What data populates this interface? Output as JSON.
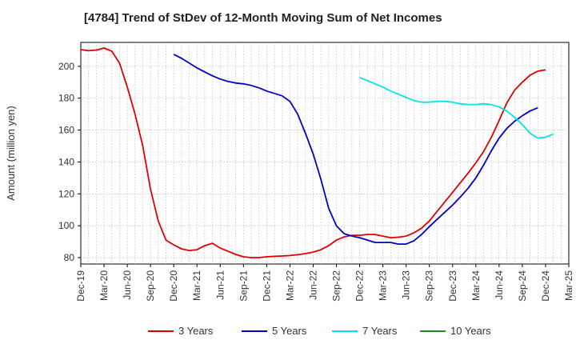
{
  "chart_data": {
    "type": "line",
    "title": "[4784]  Trend of StDev of 12-Month Moving Sum of Net Incomes",
    "ylabel": "Amount (million yen)",
    "xlabel": "",
    "ylim": [
      76,
      215
    ],
    "yticks": [
      80,
      100,
      120,
      140,
      160,
      180,
      200
    ],
    "xticks": [
      "Dec-19",
      "Mar-20",
      "Jun-20",
      "Sep-20",
      "Dec-20",
      "Mar-21",
      "Jun-21",
      "Sep-21",
      "Dec-21",
      "Mar-22",
      "Jun-22",
      "Sep-22",
      "Dec-22",
      "Mar-23",
      "Jun-23",
      "Sep-23",
      "Dec-23",
      "Mar-24",
      "Jun-24",
      "Sep-24",
      "Dec-24",
      "Mar-25"
    ],
    "grid": true,
    "legend_position": "bottom",
    "series": [
      {
        "name": "3 Years",
        "color": "#e00000",
        "start_index": 0,
        "values": [
          210.5,
          209.8,
          210.2,
          211.5,
          209.5,
          202.0,
          187.0,
          170.0,
          150.0,
          123.0,
          103.0,
          91.0,
          88.0,
          85.5,
          84.5,
          85.0,
          87.5,
          89.0,
          86.0,
          84.0,
          82.0,
          80.5,
          80.0,
          80.0,
          80.5,
          80.8,
          81.0,
          81.3,
          81.8,
          82.5,
          83.5,
          85.0,
          87.5,
          91.0,
          93.0,
          94.0,
          94.0,
          94.5,
          94.5,
          93.5,
          92.5,
          92.8,
          93.5,
          95.5,
          98.5,
          103.0,
          109.0,
          115.0,
          121.0,
          127.0,
          133.0,
          139.5,
          146.5,
          155.5,
          166.0,
          177.0,
          185.0,
          190.0,
          194.5,
          197.0,
          197.8
        ]
      },
      {
        "name": "5 Years",
        "color": "#0000cc",
        "start_index": 12,
        "values": [
          207.5,
          205.0,
          202.0,
          199.0,
          196.5,
          194.0,
          192.0,
          190.5,
          189.5,
          189.0,
          188.0,
          186.5,
          184.5,
          183.0,
          181.5,
          178.0,
          170.0,
          158.0,
          145.0,
          129.0,
          111.0,
          100.0,
          95.0,
          93.5,
          92.5,
          91.0,
          89.5,
          89.5,
          89.5,
          88.5,
          88.5,
          90.5,
          94.5,
          99.5,
          104.0,
          108.5,
          113.0,
          118.0,
          123.5,
          130.0,
          138.0,
          147.0,
          155.0,
          161.0,
          165.5,
          169.0,
          172.0,
          174.0
        ]
      },
      {
        "name": "7 Years",
        "color": "#00e5e5",
        "start_index": 36,
        "values": [
          193.0,
          191.0,
          189.0,
          187.0,
          184.5,
          182.5,
          180.5,
          178.5,
          177.5,
          177.5,
          178.0,
          178.0,
          177.5,
          176.5,
          176.0,
          176.0,
          176.5,
          176.0,
          174.5,
          172.0,
          168.0,
          163.5,
          158.0,
          155.0,
          155.5,
          157.5
        ]
      },
      {
        "name": "10 Years",
        "color": "#1e8c1e",
        "start_index": 0,
        "values": []
      }
    ]
  }
}
